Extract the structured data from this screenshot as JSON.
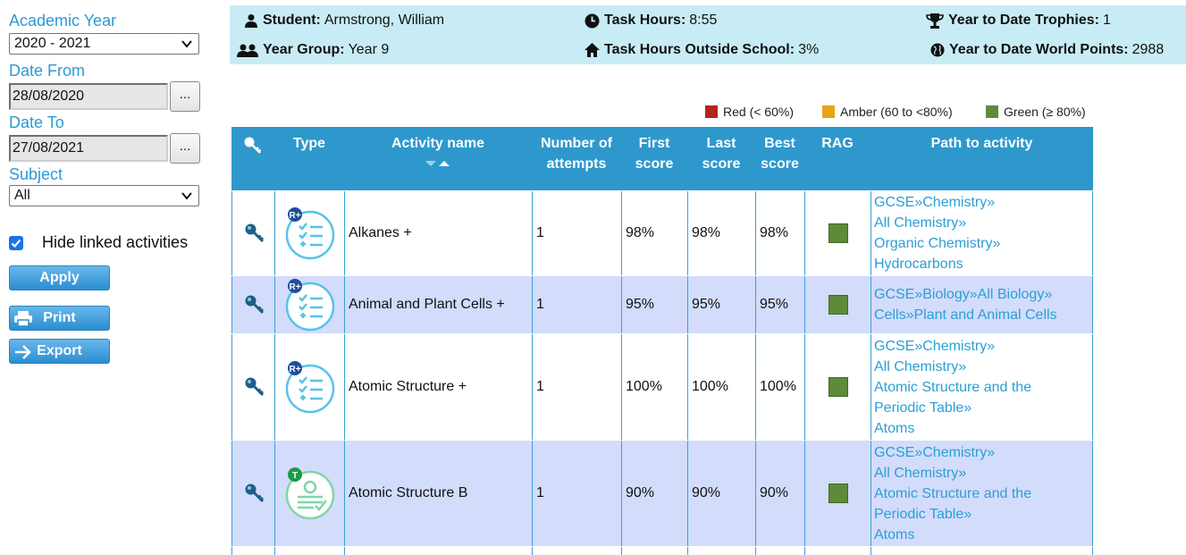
{
  "filters": {
    "academic_year_label": "Academic Year",
    "academic_year_value": "2020 - 2021",
    "date_from_label": "Date From",
    "date_from_value": "28/08/2020",
    "date_to_label": "Date To",
    "date_to_value": "27/08/2021",
    "picker_label": "...",
    "subject_label": "Subject",
    "subject_value": "All",
    "hide_linked_label": "Hide linked activities",
    "hide_linked_checked": true,
    "apply_label": "Apply",
    "print_label": "Print",
    "export_label": "Export"
  },
  "info": {
    "student_label": "Student:",
    "student_value": "Armstrong, William",
    "year_group_label": "Year Group:",
    "year_group_value": "Year 9",
    "task_hours_label": "Task Hours:",
    "task_hours_value": "8:55",
    "task_hours_outside_label": "Task Hours Outside School:",
    "task_hours_outside_value": "3%",
    "trophies_label": "Year to Date Trophies:",
    "trophies_value": "1",
    "world_points_label": "Year to Date World Points:",
    "world_points_value": "2988"
  },
  "legend": [
    {
      "label": "Red (< 60%)",
      "color": "#b3261e"
    },
    {
      "label": "Amber (60 to <80%)",
      "color": "#e8a317"
    },
    {
      "label": "Green (≥ 80%)",
      "color": "#5f8a3a"
    }
  ],
  "table": {
    "headers": {
      "type": "Type",
      "activity_name": "Activity name",
      "attempts_1": "Number of",
      "attempts_2": "attempts",
      "first_1": "First",
      "first_2": "score",
      "last_1": "Last",
      "last_2": "score",
      "best_1": "Best",
      "best_2": "score",
      "rag": "RAG",
      "path": "Path to activity"
    },
    "rows": [
      {
        "type_icon": "revision-checklist-icon",
        "badge": "R+",
        "name": "Alkanes +",
        "attempts": "1",
        "first": "98%",
        "last": "98%",
        "best": "98%",
        "rag": "green",
        "path": [
          "GCSE»Chemistry»",
          "All Chemistry»",
          "Organic Chemistry»",
          "Hydrocarbons"
        ]
      },
      {
        "type_icon": "revision-checklist-icon",
        "badge": "R+",
        "name": "Animal and Plant Cells +",
        "attempts": "1",
        "first": "95%",
        "last": "95%",
        "best": "95%",
        "rag": "green",
        "path": [
          "GCSE»Biology»All Biology»",
          "Cells»Plant and Animal Cells"
        ]
      },
      {
        "type_icon": "revision-checklist-icon",
        "badge": "R+",
        "name": "Atomic Structure +",
        "attempts": "1",
        "first": "100%",
        "last": "100%",
        "best": "100%",
        "rag": "green",
        "path": [
          "GCSE»Chemistry»",
          "All Chemistry»",
          "Atomic Structure and the",
          "Periodic Table»",
          "Atoms"
        ]
      },
      {
        "type_icon": "test-sign-icon",
        "badge": "T",
        "name": "Atomic Structure B",
        "attempts": "1",
        "first": "90%",
        "last": "90%",
        "best": "90%",
        "rag": "green",
        "path": [
          "GCSE»Chemistry»",
          "All Chemistry»",
          "Atomic Structure and the",
          "Periodic Table»",
          "Atoms"
        ]
      }
    ]
  }
}
